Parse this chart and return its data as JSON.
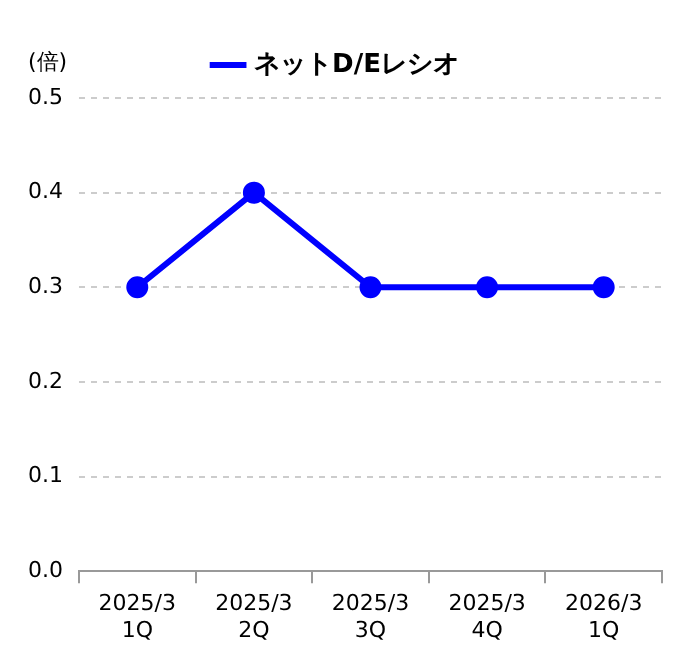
{
  "chart_data": {
    "type": "line",
    "ylabel": "(倍)",
    "categories": [
      "2025/3\n1Q",
      "2025/3\n2Q",
      "2025/3\n3Q",
      "2025/3\n4Q",
      "2026/3\n1Q"
    ],
    "series": [
      {
        "name": "ネットD/Eレシオ",
        "color": "#0000ff",
        "values": [
          0.3,
          0.4,
          0.3,
          0.3,
          0.3
        ]
      }
    ],
    "ylim": [
      0,
      0.5
    ],
    "yticks": [
      {
        "value": 0,
        "label": "0.0"
      },
      0.1,
      0.2,
      0.3,
      0.4,
      0.5
    ],
    "grid": "y",
    "legend": "top",
    "marker": "circle",
    "line_style": "solid"
  }
}
